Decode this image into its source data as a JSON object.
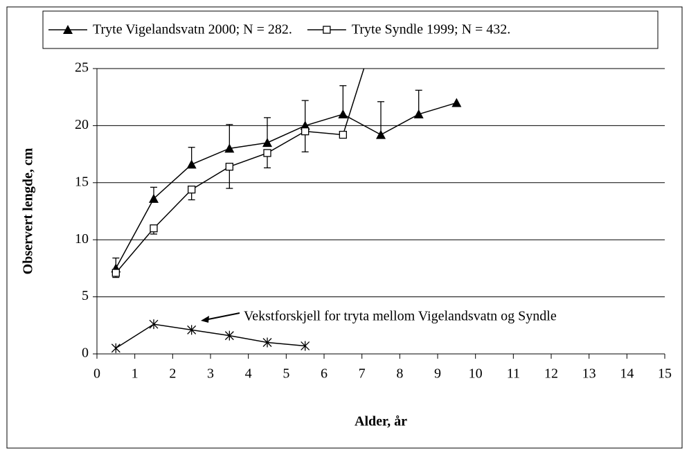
{
  "chart_data": {
    "type": "line",
    "xlabel": "Alder, år",
    "ylabel": "Observert lengde, cm",
    "annotation": "Vekstforskjell for tryta mellom Vigelandsvatn og Syndle",
    "xlim": [
      0,
      15
    ],
    "xticks": [
      0,
      1,
      2,
      3,
      4,
      5,
      6,
      7,
      8,
      9,
      10,
      11,
      12,
      13,
      14,
      15
    ],
    "ylim": [
      0,
      25
    ],
    "yticks": [
      0,
      5,
      10,
      15,
      20,
      25
    ],
    "grid": true,
    "series": [
      {
        "name": "Tryte Vigelandsvatn 2000; N = 282.",
        "color": "#000000",
        "marker": "triangle",
        "error_direction": "up",
        "x": [
          0.5,
          1.5,
          2.5,
          3.5,
          4.5,
          5.5,
          6.5,
          7.5,
          8.5,
          9.5
        ],
        "values": [
          7.5,
          13.6,
          16.6,
          18,
          18.5,
          20,
          21,
          19.2,
          21,
          22
        ],
        "errors": [
          0.9,
          1.0,
          1.5,
          2.1,
          2.2,
          2.2,
          2.5,
          2.9,
          2.1,
          null
        ]
      },
      {
        "name": "Tryte Syndle 1999; N = 432.",
        "color": "#000000",
        "marker": "square",
        "error_direction": "down",
        "x": [
          0.5,
          1.5,
          2.5,
          3.5,
          4.5,
          5.5,
          6.5,
          7.5
        ],
        "values": [
          7.1,
          11,
          14.4,
          16.4,
          17.6,
          19.5,
          19.2,
          29.7
        ],
        "errors": [
          0.4,
          0.5,
          0.9,
          1.9,
          1.3,
          1.8,
          null,
          null
        ]
      },
      {
        "color": "#000000",
        "marker": "star",
        "x": [
          0.5,
          1.5,
          2.5,
          3.5,
          4.5,
          5.5
        ],
        "values": [
          0.5,
          2.6,
          2.1,
          1.6,
          1.0,
          0.7
        ]
      }
    ]
  }
}
